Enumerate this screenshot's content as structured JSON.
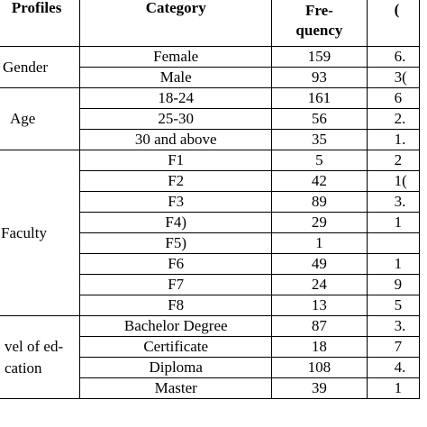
{
  "headers": {
    "profiles": "Profiles",
    "category": "Category",
    "frequency_line1": "Fre-",
    "frequency_line2": "quency",
    "percent_partial": "("
  },
  "groups": [
    {
      "profile": "Gender",
      "rows": [
        {
          "category": "Female",
          "frequency": "159",
          "percent": "6."
        },
        {
          "category": "Male",
          "frequency": "93",
          "percent": "3("
        }
      ]
    },
    {
      "profile": "Age",
      "rows": [
        {
          "category": "18-24",
          "frequency": "161",
          "percent": "6"
        },
        {
          "category": "25-30",
          "frequency": "56",
          "percent": "2."
        },
        {
          "category": "30 and above",
          "frequency": "35",
          "percent": "1."
        }
      ]
    },
    {
      "profile": "Faculty",
      "rows": [
        {
          "category": "F1",
          "frequency": "5",
          "percent": "2"
        },
        {
          "category": "F2",
          "frequency": "42",
          "percent": "1("
        },
        {
          "category": "F3",
          "frequency": "89",
          "percent": "3."
        },
        {
          "category": "F4)",
          "frequency": "29",
          "percent": "1"
        },
        {
          "category": "F5)",
          "frequency": "1",
          "percent": ""
        },
        {
          "category": "F6",
          "frequency": "49",
          "percent": "1"
        },
        {
          "category": "F7",
          "frequency": "24",
          "percent": "9"
        },
        {
          "category": "F8",
          "frequency": "13",
          "percent": "5"
        }
      ]
    },
    {
      "profile_line1": "vel of ed-",
      "profile_line2": "cation",
      "rows": [
        {
          "category": "Bachelor Degree",
          "frequency": "87",
          "percent": "3."
        },
        {
          "category": "Certificate",
          "frequency": "18",
          "percent": "7"
        },
        {
          "category": "Diploma",
          "frequency": "108",
          "percent": "4."
        },
        {
          "category": "Master",
          "frequency": "39",
          "percent": "1"
        }
      ]
    }
  ]
}
